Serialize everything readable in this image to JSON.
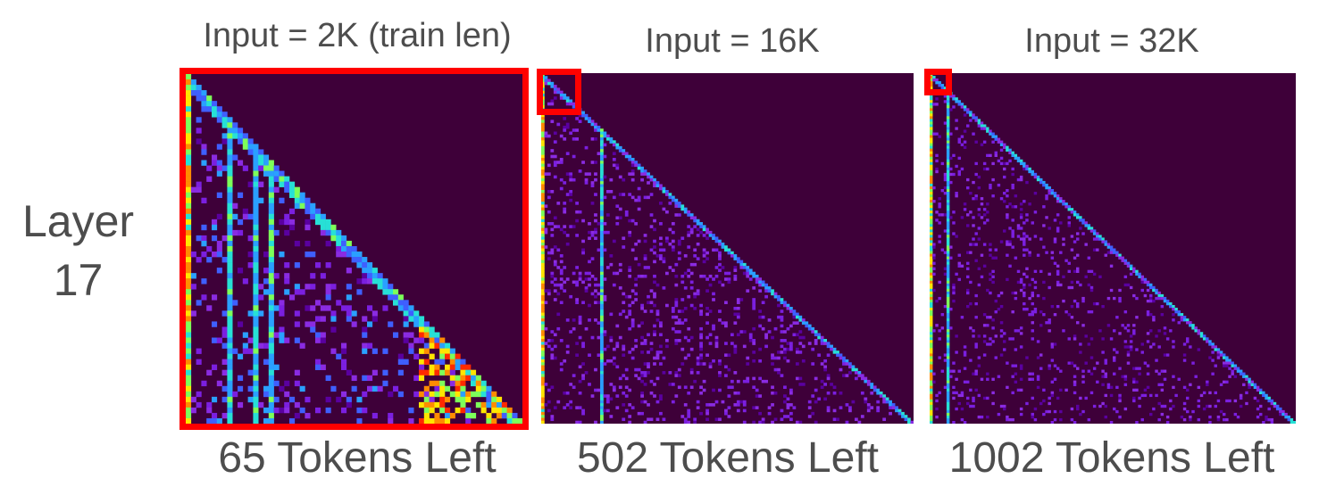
{
  "row_label": {
    "line1": "Layer",
    "line2": "17"
  },
  "chart_data": [
    {
      "type": "heatmap",
      "title": "Input = 2K (train len)",
      "caption": "65 Tokens Left",
      "tokens": 65,
      "grid": false,
      "colormap": "jet-like (purple low → blue → cyan → green → yellow → red high)",
      "highlight": "full map",
      "colors": {
        "background": "#3e0039",
        "highlight": "#ff0000"
      }
    },
    {
      "type": "heatmap",
      "title": "Input = 16K",
      "caption": "502 Tokens Left",
      "tokens": 502,
      "grid": false,
      "colormap": "jet-like (purple low → blue → cyan → green → yellow → red high)",
      "highlight": "top-left corner",
      "colors": {
        "background": "#3e0039",
        "highlight": "#ff0000"
      }
    },
    {
      "type": "heatmap",
      "title": "Input = 32K",
      "caption": "1002 Tokens Left",
      "tokens": 1002,
      "grid": false,
      "colormap": "jet-like (purple low → blue → cyan → green → yellow → red high)",
      "highlight": "top-left corner",
      "colors": {
        "background": "#3e0039",
        "highlight": "#ff0000"
      }
    }
  ]
}
